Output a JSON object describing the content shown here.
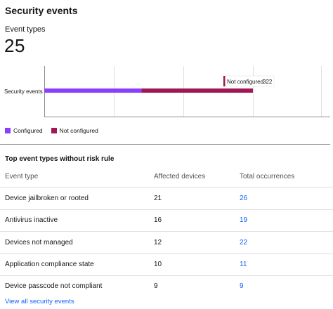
{
  "card": {
    "title": "Security events",
    "event_types_label": "Event types",
    "event_types_count": "25"
  },
  "chart_data": {
    "type": "bar",
    "orientation": "horizontal",
    "stacked": true,
    "categories": [
      "Security events"
    ],
    "series": [
      {
        "name": "Configured",
        "values": [
          281
        ],
        "color": "#8a3ffc"
      },
      {
        "name": "Not configured",
        "values": [
          322
        ],
        "color": "#9f1853"
      }
    ],
    "xlim": [
      0,
      800
    ],
    "tooltip": {
      "label": "Not configured",
      "value": "322"
    },
    "grid": true,
    "legend_position": "bottom-left"
  },
  "legend": {
    "configured": "Configured",
    "not_configured": "Not configured"
  },
  "table": {
    "title": "Top event types without risk rule",
    "headers": {
      "event_type": "Event type",
      "affected_devices": "Affected devices",
      "total_occurrences": "Total occurrences"
    },
    "rows": [
      {
        "event_type": "Device jailbroken or rooted",
        "affected_devices": "21",
        "total_occurrences": "26"
      },
      {
        "event_type": "Antivirus inactive",
        "affected_devices": "16",
        "total_occurrences": "19"
      },
      {
        "event_type": "Devices not managed",
        "affected_devices": "12",
        "total_occurrences": "22"
      },
      {
        "event_type": "Application compliance state",
        "affected_devices": "10",
        "total_occurrences": "11"
      },
      {
        "event_type": "Device passcode not compliant",
        "affected_devices": "9",
        "total_occurrences": "9"
      }
    ]
  },
  "footer": {
    "view_all": "View all security events"
  }
}
